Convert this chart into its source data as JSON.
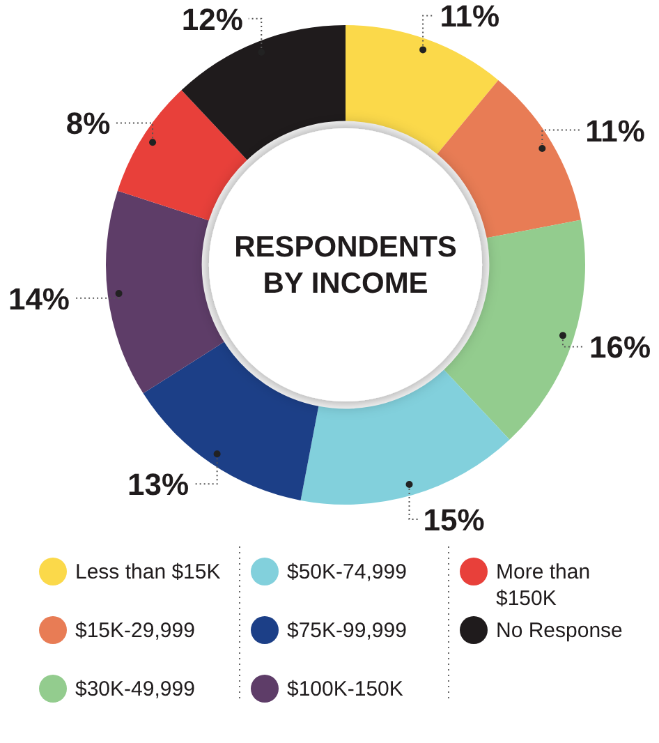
{
  "chart_data": {
    "type": "donut",
    "title": "RESPONDENTS BY INCOME",
    "categories": [
      "Less than $15K",
      "$15K-29,999",
      "$30K-49,999",
      "$50K-74,999",
      "$75K-99,999",
      "$100K-150K",
      "More than $150K",
      "No Response"
    ],
    "values": [
      11,
      11,
      16,
      15,
      13,
      14,
      8,
      12
    ],
    "colors": [
      "#fbd94a",
      "#e87c55",
      "#93cc8e",
      "#82d0dc",
      "#1c3f87",
      "#5e3d68",
      "#e8403a",
      "#1f1b1c"
    ],
    "value_labels": [
      "11%",
      "11%",
      "16%",
      "15%",
      "13%",
      "14%",
      "8%",
      "12%"
    ],
    "legend": "bottom"
  }
}
